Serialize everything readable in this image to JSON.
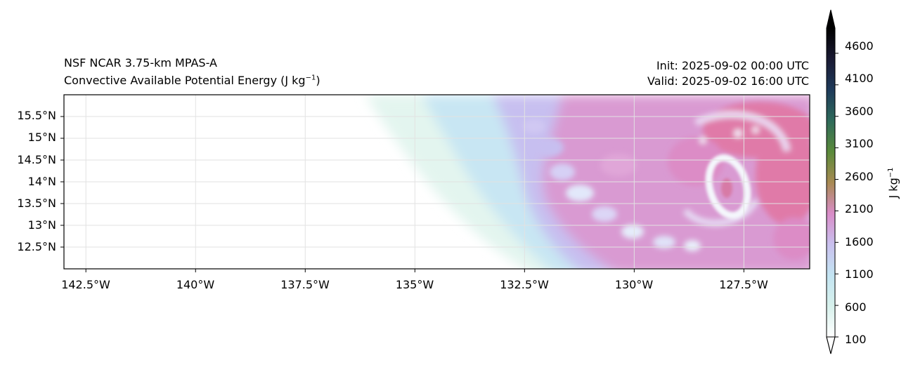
{
  "header": {
    "model_name": "NSF NCAR 3.75-km MPAS-A",
    "field_name": "Convective Available Potential Energy (J kg",
    "field_units_exp": "−1",
    "field_units_close": ")",
    "init_time": "Init: 2025-09-02 00:00 UTC",
    "valid_time": "Valid: 2025-09-02 16:00 UTC"
  },
  "map": {
    "lat_labels": [
      "15.5°N",
      "15°N",
      "14.5°N",
      "14°N",
      "13.5°N",
      "13°N",
      "12.5°N"
    ],
    "lat_values": [
      15.5,
      15.0,
      14.5,
      14.0,
      13.5,
      13.0,
      12.5
    ],
    "lon_labels": [
      "142.5°W",
      "140°W",
      "137.5°W",
      "135°W",
      "132.5°W",
      "130°W",
      "127.5°W"
    ],
    "lon_values": [
      -142.5,
      -140.0,
      -137.5,
      -135.0,
      -132.5,
      -130.0,
      -127.5
    ],
    "lon_range": [
      -143.0,
      -126.0
    ],
    "lat_range": [
      12.0,
      16.0
    ],
    "storm_center": {
      "lon": -127.9,
      "lat": 13.8
    }
  },
  "colorbar": {
    "tick_labels": [
      "4600",
      "4100",
      "3600",
      "3100",
      "2600",
      "2100",
      "1600",
      "1100",
      "600",
      "100"
    ],
    "tick_values": [
      4600,
      4100,
      3600,
      3100,
      2600,
      2100,
      1600,
      1100,
      600,
      100
    ],
    "value_range": [
      100,
      5000
    ],
    "units_label": "J kg",
    "units_exp": "−1",
    "colors": [
      "#ffffff",
      "#d7f1ec",
      "#c3e4f2",
      "#c9c0ee",
      "#d98cc8",
      "#a88a52",
      "#5a8a3a",
      "#2e6a5a",
      "#1e3a5a",
      "#1a1a33",
      "#000000"
    ]
  }
}
